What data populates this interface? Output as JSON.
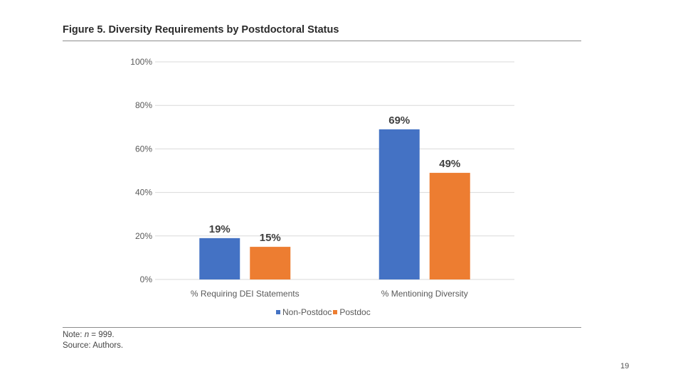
{
  "figure": {
    "title": "Figure 5. Diversity Requirements by Postdoctoral Status"
  },
  "note": {
    "prefix": "Note: ",
    "n_symbol": "n",
    "n_value": " = 999.",
    "source": "Source: Authors."
  },
  "page_number": "19",
  "colors": {
    "non_postdoc": "#4472c4",
    "postdoc": "#ed7d31",
    "gridline": "#d9d9d9",
    "tick_text": "#595959",
    "data_label": "#404040"
  },
  "chart_data": {
    "type": "bar",
    "title": "Figure 5. Diversity Requirements by Postdoctoral Status",
    "xlabel": "",
    "ylabel": "",
    "categories": [
      "% Requiring DEI Statements",
      "% Mentioning Diversity"
    ],
    "series": [
      {
        "name": "Non-Postdoc",
        "values": [
          19,
          69
        ],
        "labels": [
          "19%",
          "69%"
        ],
        "color": "#4472c4"
      },
      {
        "name": "Postdoc",
        "values": [
          15,
          49
        ],
        "labels": [
          "15%",
          "49%"
        ],
        "color": "#ed7d31"
      }
    ],
    "ylim": [
      0,
      100
    ],
    "yticks": [
      0,
      20,
      40,
      60,
      80,
      100
    ],
    "ytick_labels": [
      "0%",
      "20%",
      "40%",
      "60%",
      "80%",
      "100%"
    ],
    "grid": true,
    "legend_position": "bottom"
  }
}
